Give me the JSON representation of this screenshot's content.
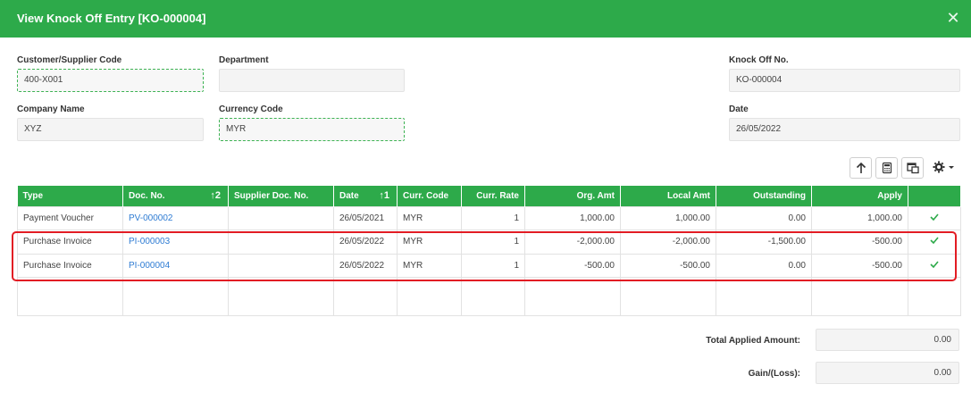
{
  "dialog": {
    "title": "View Knock Off Entry [KO-000004]",
    "close_glyph": "✕",
    "accent": "#2daa4a"
  },
  "form": {
    "customer_supplier_code": {
      "label": "Customer/Supplier Code",
      "value": "400-X001"
    },
    "department": {
      "label": "Department",
      "value": ""
    },
    "knock_off_no": {
      "label": "Knock Off No.",
      "value": "KO-000004"
    },
    "company_name": {
      "label": "Company Name",
      "value": "XYZ"
    },
    "currency_code": {
      "label": "Currency Code",
      "value": "MYR"
    },
    "date": {
      "label": "Date",
      "value": "26/05/2022"
    }
  },
  "toolbar": {
    "icons": [
      "arrow-up-icon",
      "calculator-icon",
      "window-copy-icon",
      "gear-icon"
    ]
  },
  "table": {
    "headers": {
      "type": "Type",
      "doc_no": "Doc. No.",
      "doc_no_sort": "↑2",
      "supplier_doc_no": "Supplier Doc. No.",
      "date": "Date",
      "date_sort": "↑1",
      "curr_code": "Curr. Code",
      "curr_rate": "Curr. Rate",
      "org_amt": "Org. Amt",
      "local_amt": "Local Amt",
      "outstanding": "Outstanding",
      "apply": "Apply"
    },
    "rows": [
      {
        "type": "Payment Voucher",
        "doc_no": "PV-000002",
        "supplier_doc_no": "",
        "date": "26/05/2021",
        "curr_code": "MYR",
        "curr_rate": "1",
        "org_amt": "1,000.00",
        "local_amt": "1,000.00",
        "outstanding": "0.00",
        "apply": "1,000.00",
        "checked": true
      },
      {
        "type": "Purchase Invoice",
        "doc_no": "PI-000003",
        "supplier_doc_no": "",
        "date": "26/05/2022",
        "curr_code": "MYR",
        "curr_rate": "1",
        "org_amt": "-2,000.00",
        "local_amt": "-2,000.00",
        "outstanding": "-1,500.00",
        "apply": "-500.00",
        "checked": true
      },
      {
        "type": "Purchase Invoice",
        "doc_no": "PI-000004",
        "supplier_doc_no": "",
        "date": "26/05/2022",
        "curr_code": "MYR",
        "curr_rate": "1",
        "org_amt": "-500.00",
        "local_amt": "-500.00",
        "outstanding": "0.00",
        "apply": "-500.00",
        "checked": true
      }
    ]
  },
  "summary": {
    "total_applied_label": "Total Applied Amount:",
    "total_applied_value": "0.00",
    "gain_loss_label": "Gain/(Loss):",
    "gain_loss_value": "0.00"
  },
  "colors": {
    "highlight": "#e21c24",
    "link": "#2f7cd3"
  }
}
